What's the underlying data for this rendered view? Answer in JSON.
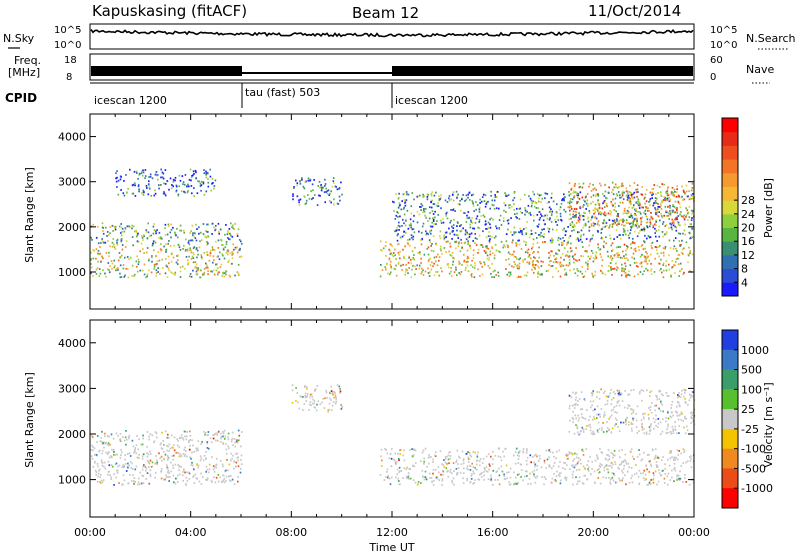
{
  "header": {
    "station": "Kapuskasing (fitACF)",
    "beam": "Beam 12",
    "date": "11/Oct/2014"
  },
  "noise_panel": {
    "left_label": "N.Sky",
    "right_label": "N.Search",
    "left_ticks": [
      "10^5",
      "10^0"
    ],
    "right_ticks": [
      "10^5",
      "10^0"
    ]
  },
  "freq_panel": {
    "left_label_1": "Freq.",
    "left_label_2": "[MHz]",
    "left_ticks": [
      "18",
      "8"
    ],
    "right_label": "Nave",
    "right_ticks": [
      "60",
      "0"
    ]
  },
  "cpid_panel": {
    "label": "CPID",
    "segments": [
      {
        "name": "icescan 1200",
        "start_h": 0,
        "end_h": 6
      },
      {
        "name": "tau (fast) 503",
        "start_h": 6,
        "end_h": 12
      },
      {
        "name": "icescan 1200",
        "start_h": 12,
        "end_h": 24
      }
    ]
  },
  "chart_data": [
    {
      "type": "heatmap",
      "title": "",
      "xlabel": "",
      "ylabel": "Slant Range [km]",
      "xlim": [
        0,
        24
      ],
      "ylim": [
        180,
        4500
      ],
      "yticks": [
        "1000",
        "2000",
        "3000",
        "4000"
      ],
      "colorbar": {
        "label": "Power [dB]",
        "ticks": [
          "4",
          "8",
          "12",
          "16",
          "20",
          "24",
          "28"
        ],
        "colors": [
          "#1a1aff",
          "#2a4cd6",
          "#2f6fb2",
          "#3a8f72",
          "#5ab441",
          "#8fce3c",
          "#d8d83a",
          "#f5b833",
          "#f59a2e",
          "#f37426",
          "#ef4f1f",
          "#e82a18",
          "#ff0000"
        ]
      },
      "echo_regions": [
        {
          "t0": 0.0,
          "t1": 6.0,
          "r0": 900,
          "r1": 1650,
          "level": 0.45
        },
        {
          "t0": 0.0,
          "t1": 6.0,
          "r0": 1650,
          "r1": 2100,
          "level": 0.3
        },
        {
          "t0": 1.0,
          "t1": 5.0,
          "r0": 2700,
          "r1": 3300,
          "level": 0.15
        },
        {
          "t0": 8.0,
          "t1": 10.0,
          "r0": 2500,
          "r1": 3100,
          "level": 0.2
        },
        {
          "t0": 11.5,
          "t1": 24.0,
          "r0": 900,
          "r1": 1700,
          "level": 0.55
        },
        {
          "t0": 12.0,
          "t1": 24.0,
          "r0": 1700,
          "r1": 2800,
          "level": 0.25
        },
        {
          "t0": 19.0,
          "t1": 24.0,
          "r0": 2000,
          "r1": 3000,
          "level": 0.6
        }
      ]
    },
    {
      "type": "heatmap",
      "title": "",
      "xlabel": "Time UT",
      "ylabel": "Slant Range [km]",
      "xlim": [
        0,
        24
      ],
      "ylim": [
        180,
        4500
      ],
      "yticks": [
        "1000",
        "2000",
        "3000",
        "4000"
      ],
      "xticks": [
        "00:00",
        "04:00",
        "08:00",
        "12:00",
        "16:00",
        "20:00",
        "00:00"
      ],
      "colorbar": {
        "label": "Velocity [m s⁻¹]",
        "ticks": [
          "1000",
          "500",
          "100",
          "25",
          "-25",
          "-100",
          "-500",
          "-1000"
        ],
        "colors": [
          "#1f3fe0",
          "#3a7ac8",
          "#3a9e6a",
          "#58c02e",
          "#c8c8c8",
          "#f5c400",
          "#f08a20",
          "#ec4c18",
          "#ff0000"
        ]
      },
      "echo_regions": [
        {
          "t0": 0.0,
          "t1": 6.0,
          "r0": 900,
          "r1": 1650,
          "level": 0.5
        },
        {
          "t0": 0.0,
          "t1": 6.0,
          "r0": 1650,
          "r1": 2100,
          "level": 0.5
        },
        {
          "t0": 8.0,
          "t1": 10.0,
          "r0": 2500,
          "r1": 3100,
          "level": 0.5
        },
        {
          "t0": 11.5,
          "t1": 24.0,
          "r0": 900,
          "r1": 1700,
          "level": 0.5
        },
        {
          "t0": 19.0,
          "t1": 24.0,
          "r0": 2000,
          "r1": 3000,
          "level": 0.65
        }
      ]
    }
  ]
}
